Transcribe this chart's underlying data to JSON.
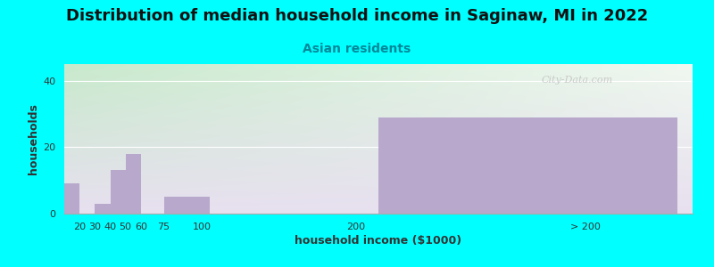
{
  "title": "Distribution of median household income in Saginaw, MI in 2022",
  "subtitle": "Asian residents",
  "xlabel": "household income ($1000)",
  "ylabel": "households",
  "background_color": "#00FFFF",
  "bar_color": "#b8a8cc",
  "categories": [
    "20",
    "30",
    "40",
    "50",
    "60",
    "75",
    "100",
    "200",
    "> 200"
  ],
  "values": [
    9,
    0,
    3,
    13,
    18,
    0,
    5,
    0,
    29
  ],
  "tick_positions": [
    20,
    30,
    40,
    50,
    60,
    75,
    100,
    200,
    350
  ],
  "bar_lefts": [
    10,
    20,
    30,
    40,
    50,
    65,
    75,
    120,
    215
  ],
  "bar_widths": [
    10,
    10,
    10,
    10,
    10,
    10,
    30,
    80,
    195
  ],
  "xlim": [
    10,
    420
  ],
  "ylim": [
    0,
    45
  ],
  "yticks": [
    0,
    20,
    40
  ],
  "watermark": "City-Data.com",
  "title_fontsize": 13,
  "subtitle_fontsize": 10,
  "axis_label_fontsize": 9
}
